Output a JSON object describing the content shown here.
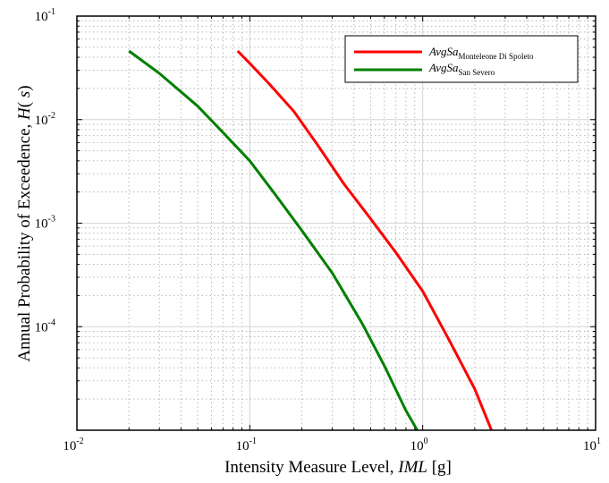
{
  "chart_data": {
    "type": "line",
    "x_scale": "log",
    "y_scale": "log",
    "xlim": [
      0.01,
      10
    ],
    "ylim": [
      1e-05,
      0.1
    ],
    "grid": true,
    "legend_position": "top-right",
    "xlabel": {
      "text": "Intensity Measure Level, ",
      "italic": "IML",
      "unit": " [g]"
    },
    "ylabel": {
      "text": "Annual Probability of Exceedence, ",
      "italic": "H",
      "paren_open": "( ",
      "italic2": "s",
      "paren_close": ")"
    },
    "x_ticks": [
      {
        "base": "10",
        "exp": "-2",
        "value": 0.01
      },
      {
        "base": "10",
        "exp": "-1",
        "value": 0.1
      },
      {
        "base": "10",
        "exp": "0",
        "value": 1
      },
      {
        "base": "10",
        "exp": "1",
        "value": 10
      }
    ],
    "y_ticks": [
      {
        "base": "10",
        "exp": "-1",
        "value": 0.1
      },
      {
        "base": "10",
        "exp": "-2",
        "value": 0.01
      },
      {
        "base": "10",
        "exp": "-3",
        "value": 0.001
      },
      {
        "base": "10",
        "exp": "-4",
        "value": 0.0001
      }
    ],
    "series": [
      {
        "name_main": "AvgSa",
        "name_sub": "Monteleone Di Spoleto",
        "color": "#ff0000",
        "x": [
          0.085,
          0.1,
          0.13,
          0.18,
          0.25,
          0.35,
          0.5,
          0.7,
          1.0,
          1.4,
          2.0,
          2.5
        ],
        "y": [
          0.046,
          0.035,
          0.022,
          0.012,
          0.0055,
          0.0024,
          0.0011,
          0.00052,
          0.00022,
          7.8e-05,
          2.5e-05,
          1e-05
        ]
      },
      {
        "name_main": "AvgSa",
        "name_sub": "San Severo",
        "color": "#008000",
        "x": [
          0.02,
          0.03,
          0.05,
          0.07,
          0.1,
          0.14,
          0.2,
          0.3,
          0.45,
          0.6,
          0.8,
          0.93
        ],
        "y": [
          0.046,
          0.028,
          0.0135,
          0.0075,
          0.004,
          0.0019,
          0.00085,
          0.00033,
          0.000105,
          4.2e-05,
          1.55e-05,
          1e-05
        ]
      }
    ]
  }
}
